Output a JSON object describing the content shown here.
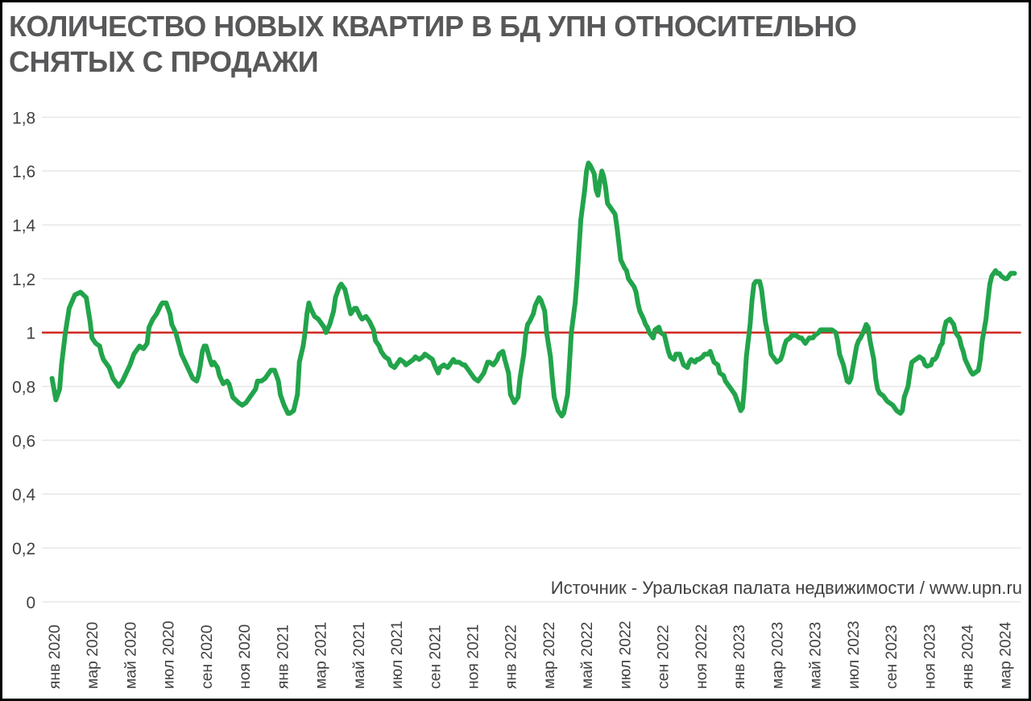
{
  "chart_data": {
    "type": "line",
    "title_lines": [
      "КОЛИЧЕСТВО НОВЫХ КВАРТИР В БД УПН ОТНОСИТЕЛЬНО",
      "СНЯТЫХ С ПРОДАЖИ"
    ],
    "source": "Источник - Уральская палата недвижимости / www.upn.ru",
    "xlabel": "",
    "ylabel": "",
    "ylim": [
      0,
      1.8
    ],
    "grid": true,
    "legend": "none",
    "colors": {
      "line": "#22a44b",
      "reference_line": "#cf2a23",
      "grid": "#e7e7e7",
      "title_text": "#58585a",
      "axis_text": "#414042"
    },
    "y_ticks": [
      {
        "v": 1.8,
        "label": "1,8"
      },
      {
        "v": 1.6,
        "label": "1,6"
      },
      {
        "v": 1.4,
        "label": "1,4"
      },
      {
        "v": 1.2,
        "label": "1,2"
      },
      {
        "v": 1.0,
        "label": "1"
      },
      {
        "v": 0.8,
        "label": "0,8"
      },
      {
        "v": 0.6,
        "label": "0,6"
      },
      {
        "v": 0.4,
        "label": "0,4"
      },
      {
        "v": 0.2,
        "label": "0,2"
      },
      {
        "v": 0.0,
        "label": "0"
      }
    ],
    "x_ticks": [
      {
        "t": 0,
        "label": "янв 2020"
      },
      {
        "t": 2,
        "label": "мар 2020"
      },
      {
        "t": 4,
        "label": "май 2020"
      },
      {
        "t": 6,
        "label": "июл 2020"
      },
      {
        "t": 8,
        "label": "сен 2020"
      },
      {
        "t": 10,
        "label": "ноя 2020"
      },
      {
        "t": 12,
        "label": "янв 2021"
      },
      {
        "t": 14,
        "label": "мар 2021"
      },
      {
        "t": 16,
        "label": "май 2021"
      },
      {
        "t": 18,
        "label": "июл 2021"
      },
      {
        "t": 20,
        "label": "сен 2021"
      },
      {
        "t": 22,
        "label": "ноя 2021"
      },
      {
        "t": 24,
        "label": "янв 2022"
      },
      {
        "t": 26,
        "label": "мар 2022"
      },
      {
        "t": 28,
        "label": "май 2022"
      },
      {
        "t": 30,
        "label": "июл 2022"
      },
      {
        "t": 32,
        "label": "сен 2022"
      },
      {
        "t": 34,
        "label": "ноя 2022"
      },
      {
        "t": 36,
        "label": "янв 2023"
      },
      {
        "t": 38,
        "label": "мар 2023"
      },
      {
        "t": 40,
        "label": "май 2023"
      },
      {
        "t": 42,
        "label": "июл 2023"
      },
      {
        "t": 44,
        "label": "сен 2023"
      },
      {
        "t": 46,
        "label": "ноя 2023"
      },
      {
        "t": 48,
        "label": "янв 2024"
      },
      {
        "t": 50,
        "label": "мар 2024"
      }
    ],
    "reference_line": {
      "value": 1.0
    },
    "points": [
      [
        -0.1,
        0.83
      ],
      [
        0.1,
        0.75
      ],
      [
        0.3,
        0.79
      ],
      [
        0.4,
        0.88
      ],
      [
        0.6,
        1.0
      ],
      [
        0.8,
        1.09
      ],
      [
        1.1,
        1.14
      ],
      [
        1.4,
        1.15
      ],
      [
        1.7,
        1.13
      ],
      [
        1.9,
        1.04
      ],
      [
        2.0,
        0.98
      ],
      [
        2.2,
        0.96
      ],
      [
        2.4,
        0.95
      ],
      [
        2.5,
        0.92
      ],
      [
        2.6,
        0.9
      ],
      [
        2.9,
        0.87
      ],
      [
        3.1,
        0.83
      ],
      [
        3.3,
        0.81
      ],
      [
        3.4,
        0.8
      ],
      [
        3.6,
        0.82
      ],
      [
        3.8,
        0.85
      ],
      [
        4.0,
        0.88
      ],
      [
        4.2,
        0.92
      ],
      [
        4.5,
        0.95
      ],
      [
        4.7,
        0.94
      ],
      [
        4.9,
        0.96
      ],
      [
        5.0,
        1.02
      ],
      [
        5.2,
        1.05
      ],
      [
        5.4,
        1.07
      ],
      [
        5.6,
        1.1
      ],
      [
        5.7,
        1.11
      ],
      [
        5.9,
        1.11
      ],
      [
        6.1,
        1.07
      ],
      [
        6.2,
        1.03
      ],
      [
        6.4,
        1.0
      ],
      [
        6.6,
        0.95
      ],
      [
        6.7,
        0.92
      ],
      [
        6.9,
        0.89
      ],
      [
        7.1,
        0.86
      ],
      [
        7.3,
        0.83
      ],
      [
        7.5,
        0.82
      ],
      [
        7.6,
        0.84
      ],
      [
        7.7,
        0.88
      ],
      [
        7.8,
        0.93
      ],
      [
        7.9,
        0.95
      ],
      [
        8.0,
        0.95
      ],
      [
        8.2,
        0.9
      ],
      [
        8.3,
        0.88
      ],
      [
        8.4,
        0.89
      ],
      [
        8.6,
        0.87
      ],
      [
        8.7,
        0.84
      ],
      [
        8.9,
        0.81
      ],
      [
        9.1,
        0.82
      ],
      [
        9.2,
        0.81
      ],
      [
        9.4,
        0.76
      ],
      [
        9.7,
        0.74
      ],
      [
        9.9,
        0.73
      ],
      [
        10.1,
        0.74
      ],
      [
        10.3,
        0.76
      ],
      [
        10.4,
        0.77
      ],
      [
        10.6,
        0.79
      ],
      [
        10.7,
        0.82
      ],
      [
        10.9,
        0.82
      ],
      [
        11.1,
        0.83
      ],
      [
        11.3,
        0.85
      ],
      [
        11.4,
        0.86
      ],
      [
        11.6,
        0.86
      ],
      [
        11.8,
        0.82
      ],
      [
        11.9,
        0.77
      ],
      [
        12.1,
        0.73
      ],
      [
        12.3,
        0.7
      ],
      [
        12.4,
        0.7
      ],
      [
        12.6,
        0.71
      ],
      [
        12.8,
        0.77
      ],
      [
        12.9,
        0.89
      ],
      [
        13.1,
        0.95
      ],
      [
        13.2,
        1.0
      ],
      [
        13.3,
        1.07
      ],
      [
        13.4,
        1.11
      ],
      [
        13.5,
        1.09
      ],
      [
        13.7,
        1.06
      ],
      [
        13.9,
        1.05
      ],
      [
        14.0,
        1.04
      ],
      [
        14.2,
        1.02
      ],
      [
        14.3,
        1.0
      ],
      [
        14.5,
        1.03
      ],
      [
        14.7,
        1.08
      ],
      [
        14.8,
        1.13
      ],
      [
        15.0,
        1.17
      ],
      [
        15.1,
        1.18
      ],
      [
        15.3,
        1.16
      ],
      [
        15.4,
        1.13
      ],
      [
        15.5,
        1.1
      ],
      [
        15.6,
        1.07
      ],
      [
        15.8,
        1.09
      ],
      [
        15.9,
        1.09
      ],
      [
        16.1,
        1.06
      ],
      [
        16.2,
        1.05
      ],
      [
        16.4,
        1.06
      ],
      [
        16.5,
        1.05
      ],
      [
        16.6,
        1.04
      ],
      [
        16.8,
        1.01
      ],
      [
        16.9,
        0.97
      ],
      [
        17.1,
        0.95
      ],
      [
        17.2,
        0.93
      ],
      [
        17.4,
        0.91
      ],
      [
        17.6,
        0.9
      ],
      [
        17.7,
        0.88
      ],
      [
        17.9,
        0.87
      ],
      [
        18.1,
        0.89
      ],
      [
        18.2,
        0.9
      ],
      [
        18.4,
        0.89
      ],
      [
        18.5,
        0.88
      ],
      [
        18.7,
        0.89
      ],
      [
        18.9,
        0.9
      ],
      [
        19.0,
        0.91
      ],
      [
        19.2,
        0.9
      ],
      [
        19.4,
        0.91
      ],
      [
        19.5,
        0.92
      ],
      [
        19.7,
        0.91
      ],
      [
        19.9,
        0.9
      ],
      [
        20.0,
        0.88
      ],
      [
        20.2,
        0.85
      ],
      [
        20.3,
        0.87
      ],
      [
        20.5,
        0.88
      ],
      [
        20.7,
        0.87
      ],
      [
        20.8,
        0.88
      ],
      [
        21.0,
        0.9
      ],
      [
        21.1,
        0.89
      ],
      [
        21.3,
        0.89
      ],
      [
        21.5,
        0.88
      ],
      [
        21.6,
        0.88
      ],
      [
        21.8,
        0.86
      ],
      [
        22.0,
        0.84
      ],
      [
        22.1,
        0.83
      ],
      [
        22.3,
        0.82
      ],
      [
        22.4,
        0.83
      ],
      [
        22.6,
        0.85
      ],
      [
        22.8,
        0.89
      ],
      [
        22.9,
        0.89
      ],
      [
        23.1,
        0.88
      ],
      [
        23.3,
        0.9
      ],
      [
        23.4,
        0.92
      ],
      [
        23.6,
        0.93
      ],
      [
        23.7,
        0.9
      ],
      [
        23.9,
        0.85
      ],
      [
        24.0,
        0.77
      ],
      [
        24.2,
        0.74
      ],
      [
        24.4,
        0.76
      ],
      [
        24.5,
        0.83
      ],
      [
        24.7,
        0.92
      ],
      [
        24.8,
        0.99
      ],
      [
        24.9,
        1.03
      ],
      [
        25.0,
        1.04
      ],
      [
        25.2,
        1.07
      ],
      [
        25.3,
        1.1
      ],
      [
        25.5,
        1.13
      ],
      [
        25.6,
        1.12
      ],
      [
        25.8,
        1.08
      ],
      [
        25.9,
        1.0
      ],
      [
        26.1,
        0.91
      ],
      [
        26.2,
        0.83
      ],
      [
        26.3,
        0.76
      ],
      [
        26.5,
        0.71
      ],
      [
        26.6,
        0.7
      ],
      [
        26.7,
        0.69
      ],
      [
        26.8,
        0.7
      ],
      [
        27.0,
        0.77
      ],
      [
        27.1,
        0.88
      ],
      [
        27.2,
        1.0
      ],
      [
        27.4,
        1.11
      ],
      [
        27.5,
        1.2
      ],
      [
        27.6,
        1.31
      ],
      [
        27.7,
        1.42
      ],
      [
        27.9,
        1.53
      ],
      [
        28.0,
        1.6
      ],
      [
        28.1,
        1.63
      ],
      [
        28.2,
        1.62
      ],
      [
        28.4,
        1.59
      ],
      [
        28.5,
        1.53
      ],
      [
        28.6,
        1.51
      ],
      [
        28.7,
        1.56
      ],
      [
        28.8,
        1.6
      ],
      [
        28.9,
        1.58
      ],
      [
        29.0,
        1.54
      ],
      [
        29.1,
        1.48
      ],
      [
        29.2,
        1.47
      ],
      [
        29.3,
        1.46
      ],
      [
        29.5,
        1.44
      ],
      [
        29.6,
        1.39
      ],
      [
        29.7,
        1.33
      ],
      [
        29.8,
        1.27
      ],
      [
        30.0,
        1.24
      ],
      [
        30.1,
        1.23
      ],
      [
        30.2,
        1.2
      ],
      [
        30.3,
        1.19
      ],
      [
        30.5,
        1.17
      ],
      [
        30.6,
        1.15
      ],
      [
        30.7,
        1.11
      ],
      [
        30.8,
        1.08
      ],
      [
        31.0,
        1.05
      ],
      [
        31.1,
        1.03
      ],
      [
        31.2,
        1.02
      ],
      [
        31.3,
        1.0
      ],
      [
        31.5,
        0.98
      ],
      [
        31.6,
        1.01
      ],
      [
        31.8,
        1.02
      ],
      [
        31.9,
        1.0
      ],
      [
        32.1,
        0.99
      ],
      [
        32.2,
        0.96
      ],
      [
        32.3,
        0.93
      ],
      [
        32.4,
        0.91
      ],
      [
        32.6,
        0.9
      ],
      [
        32.7,
        0.92
      ],
      [
        32.9,
        0.92
      ],
      [
        33.0,
        0.9
      ],
      [
        33.1,
        0.88
      ],
      [
        33.3,
        0.87
      ],
      [
        33.4,
        0.89
      ],
      [
        33.5,
        0.9
      ],
      [
        33.7,
        0.89
      ],
      [
        33.8,
        0.9
      ],
      [
        33.9,
        0.9
      ],
      [
        34.1,
        0.91
      ],
      [
        34.2,
        0.92
      ],
      [
        34.4,
        0.92
      ],
      [
        34.5,
        0.93
      ],
      [
        34.6,
        0.91
      ],
      [
        34.7,
        0.89
      ],
      [
        34.9,
        0.88
      ],
      [
        35.0,
        0.85
      ],
      [
        35.2,
        0.84
      ],
      [
        35.3,
        0.82
      ],
      [
        35.4,
        0.81
      ],
      [
        35.6,
        0.79
      ],
      [
        35.7,
        0.78
      ],
      [
        35.8,
        0.77
      ],
      [
        36.0,
        0.73
      ],
      [
        36.1,
        0.71
      ],
      [
        36.2,
        0.72
      ],
      [
        36.3,
        0.8
      ],
      [
        36.4,
        0.91
      ],
      [
        36.6,
        1.03
      ],
      [
        36.7,
        1.12
      ],
      [
        36.8,
        1.18
      ],
      [
        36.9,
        1.19
      ],
      [
        37.1,
        1.19
      ],
      [
        37.2,
        1.16
      ],
      [
        37.3,
        1.1
      ],
      [
        37.4,
        1.04
      ],
      [
        37.6,
        0.97
      ],
      [
        37.7,
        0.92
      ],
      [
        37.9,
        0.9
      ],
      [
        38.0,
        0.89
      ],
      [
        38.2,
        0.9
      ],
      [
        38.3,
        0.92
      ],
      [
        38.4,
        0.95
      ],
      [
        38.5,
        0.97
      ],
      [
        38.7,
        0.98
      ],
      [
        38.8,
        0.99
      ],
      [
        38.9,
        0.99
      ],
      [
        39.0,
        0.99
      ],
      [
        39.2,
        0.98
      ],
      [
        39.3,
        0.98
      ],
      [
        39.4,
        0.97
      ],
      [
        39.5,
        0.96
      ],
      [
        39.7,
        0.98
      ],
      [
        39.8,
        0.98
      ],
      [
        39.9,
        0.98
      ],
      [
        40.0,
        0.99
      ],
      [
        40.2,
        1.0
      ],
      [
        40.3,
        1.01
      ],
      [
        40.4,
        1.01
      ],
      [
        40.5,
        1.01
      ],
      [
        40.7,
        1.01
      ],
      [
        40.8,
        1.01
      ],
      [
        40.9,
        1.01
      ],
      [
        41.1,
        1.0
      ],
      [
        41.2,
        0.97
      ],
      [
        41.3,
        0.92
      ],
      [
        41.5,
        0.88
      ],
      [
        41.6,
        0.85
      ],
      [
        41.7,
        0.82
      ],
      [
        41.8,
        0.815
      ],
      [
        41.9,
        0.83
      ],
      [
        42.1,
        0.91
      ],
      [
        42.2,
        0.95
      ],
      [
        42.3,
        0.97
      ],
      [
        42.4,
        0.98
      ],
      [
        42.6,
        1.01
      ],
      [
        42.7,
        1.03
      ],
      [
        42.8,
        1.02
      ],
      [
        42.9,
        0.97
      ],
      [
        43.1,
        0.9
      ],
      [
        43.2,
        0.83
      ],
      [
        43.3,
        0.79
      ],
      [
        43.4,
        0.775
      ],
      [
        43.6,
        0.765
      ],
      [
        43.7,
        0.755
      ],
      [
        43.8,
        0.745
      ],
      [
        44.0,
        0.735
      ],
      [
        44.1,
        0.73
      ],
      [
        44.2,
        0.72
      ],
      [
        44.3,
        0.71
      ],
      [
        44.5,
        0.7
      ],
      [
        44.6,
        0.71
      ],
      [
        44.7,
        0.76
      ],
      [
        44.9,
        0.8
      ],
      [
        45.0,
        0.85
      ],
      [
        45.1,
        0.89
      ],
      [
        45.3,
        0.9
      ],
      [
        45.4,
        0.905
      ],
      [
        45.5,
        0.91
      ],
      [
        45.7,
        0.9
      ],
      [
        45.8,
        0.88
      ],
      [
        45.9,
        0.875
      ],
      [
        46.1,
        0.88
      ],
      [
        46.2,
        0.9
      ],
      [
        46.3,
        0.9
      ],
      [
        46.4,
        0.91
      ],
      [
        46.6,
        0.95
      ],
      [
        46.7,
        0.96
      ],
      [
        46.8,
        1.01
      ],
      [
        46.9,
        1.04
      ],
      [
        47.1,
        1.05
      ],
      [
        47.2,
        1.04
      ],
      [
        47.3,
        1.03
      ],
      [
        47.4,
        1.0
      ],
      [
        47.6,
        0.98
      ],
      [
        47.7,
        0.95
      ],
      [
        47.8,
        0.93
      ],
      [
        47.9,
        0.9
      ],
      [
        48.1,
        0.87
      ],
      [
        48.2,
        0.855
      ],
      [
        48.3,
        0.845
      ],
      [
        48.4,
        0.85
      ],
      [
        48.6,
        0.86
      ],
      [
        48.7,
        0.9
      ],
      [
        48.8,
        0.97
      ],
      [
        49.0,
        1.05
      ],
      [
        49.1,
        1.12
      ],
      [
        49.2,
        1.18
      ],
      [
        49.3,
        1.21
      ],
      [
        49.5,
        1.23
      ],
      [
        49.6,
        1.22
      ],
      [
        49.7,
        1.22
      ],
      [
        49.8,
        1.21
      ],
      [
        50.0,
        1.2
      ],
      [
        50.1,
        1.2
      ],
      [
        50.2,
        1.21
      ],
      [
        50.3,
        1.22
      ],
      [
        50.5,
        1.22
      ]
    ]
  }
}
